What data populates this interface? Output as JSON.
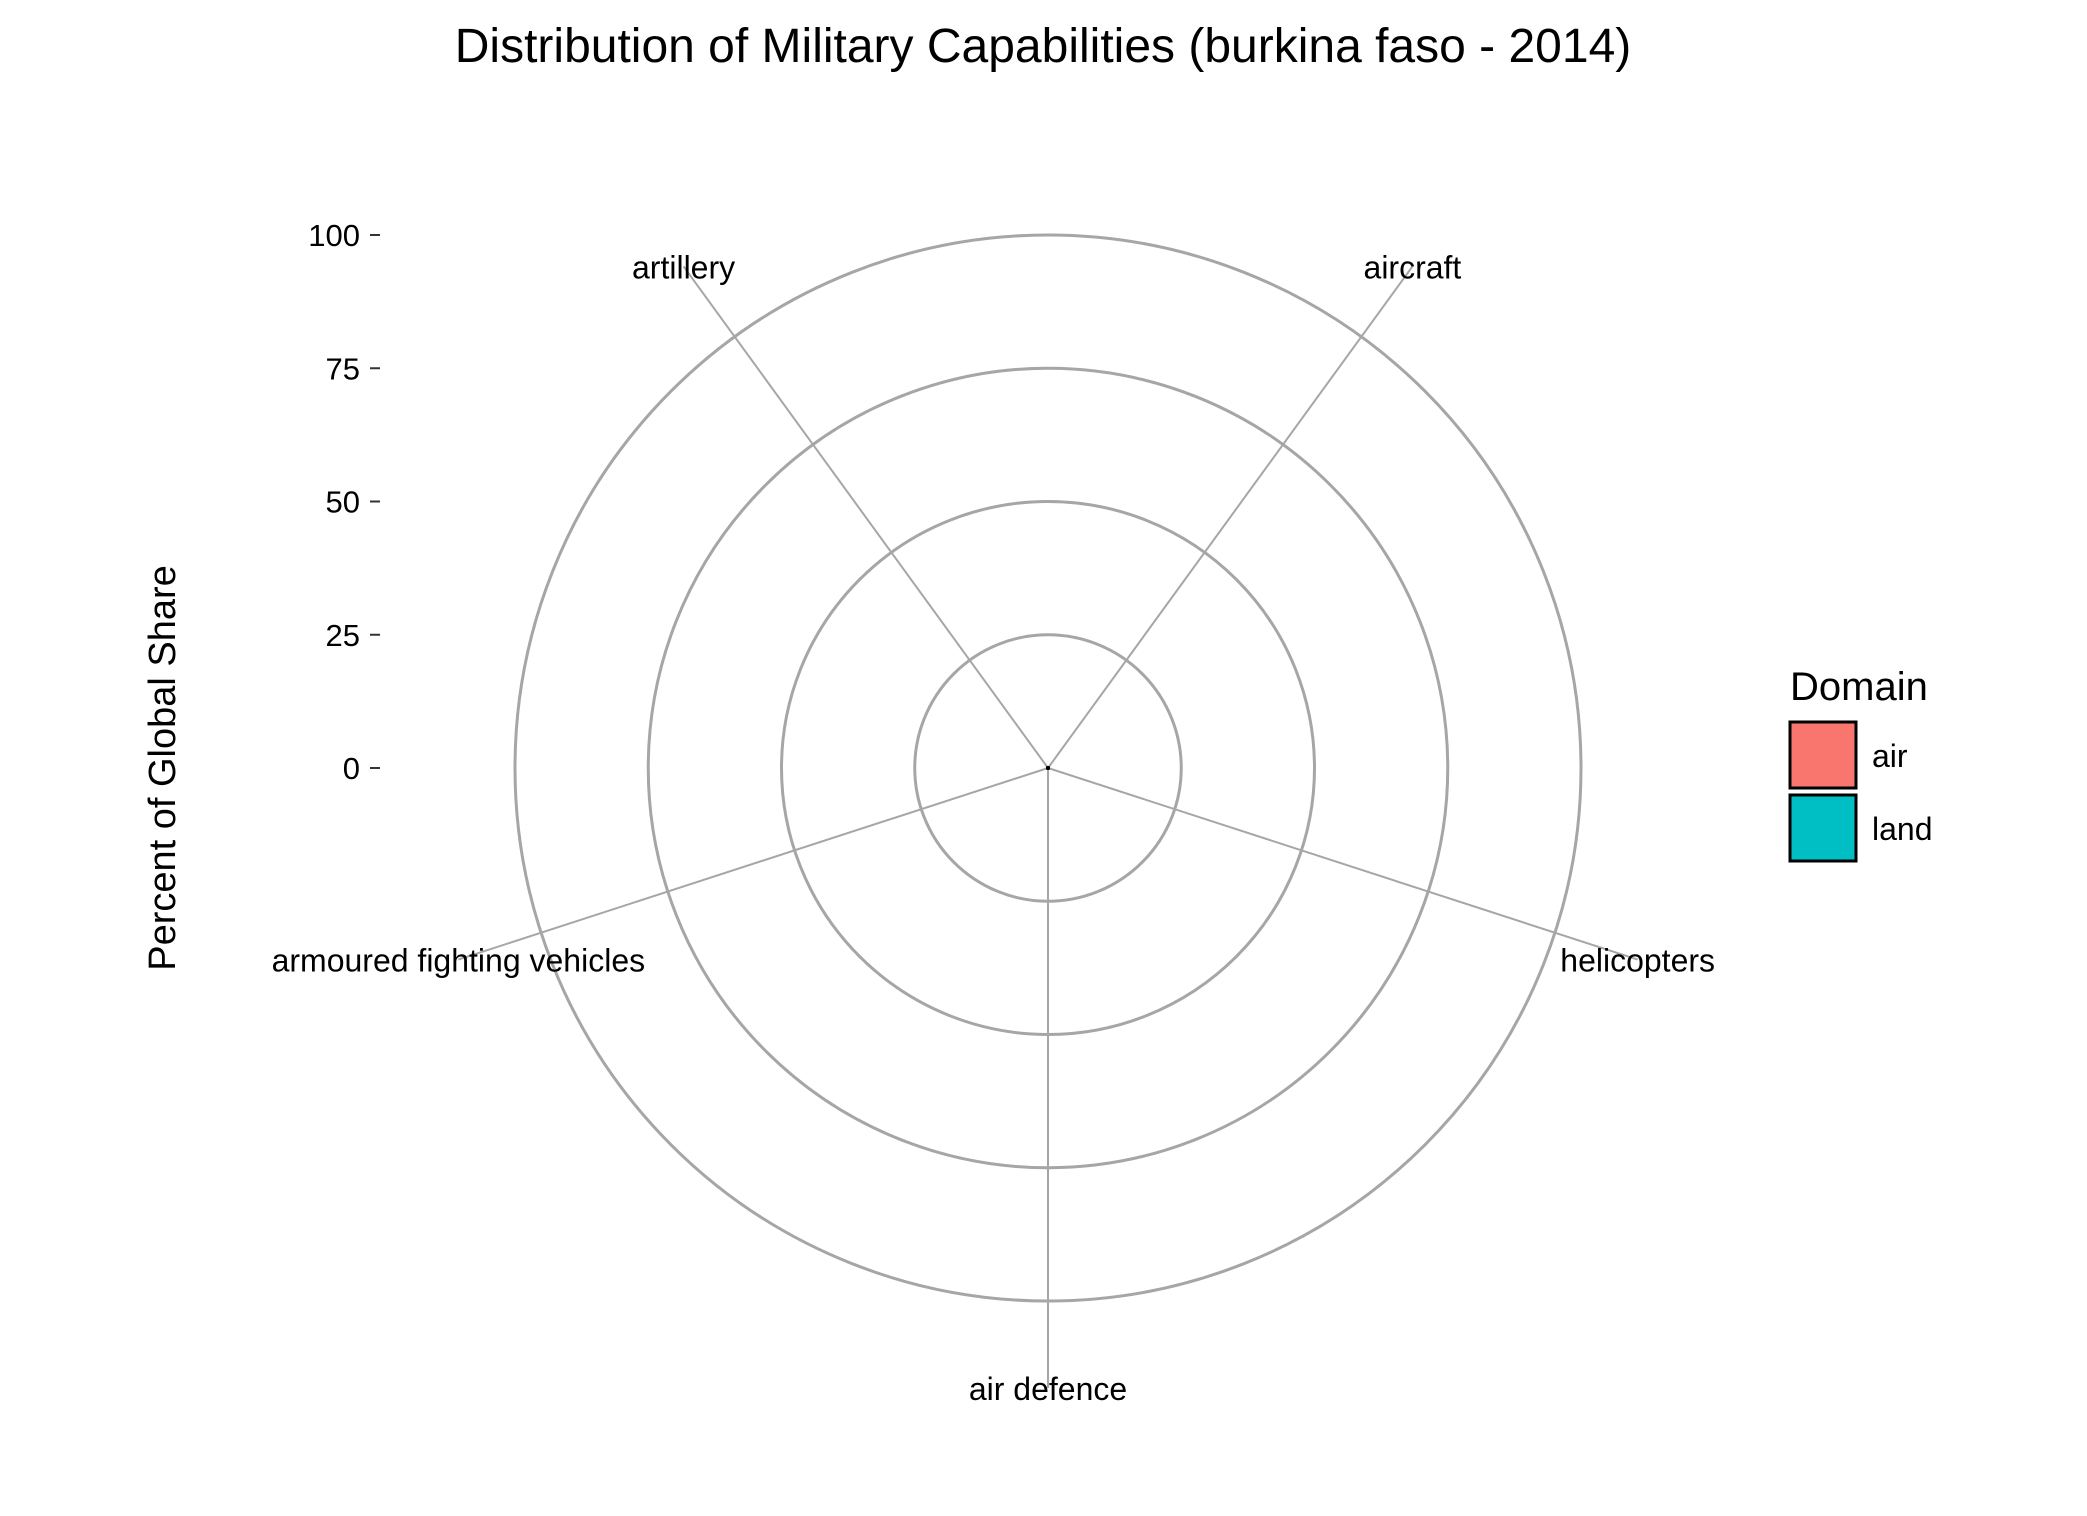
{
  "chart_data": {
    "type": "radar",
    "title": "Distribution of Military Capabilities (burkina faso - 2014)",
    "ylabel": "Percent of Global Share",
    "xlabel": "",
    "ylim": [
      0,
      100
    ],
    "y_ticks": [
      "0",
      "25",
      "50",
      "75",
      "100"
    ],
    "y_tick_values": [
      0,
      25,
      50,
      75,
      100
    ],
    "categories": [
      "aircraft",
      "helicopters",
      "air defence",
      "armoured fighting vehicles",
      "artillery"
    ],
    "series": [
      {
        "name": "air",
        "domain": "air",
        "values": [
          0,
          0,
          0,
          null,
          null
        ]
      },
      {
        "name": "land",
        "domain": "land",
        "values": [
          null,
          null,
          null,
          0,
          0
        ]
      }
    ],
    "grid": true,
    "legend": {
      "title": "Domain",
      "position": "right",
      "items": [
        {
          "label": "air",
          "color": "#F8766D"
        },
        {
          "label": "land",
          "color": "#00BFC4"
        }
      ]
    },
    "colors": {
      "grid": "#a6a6a6",
      "spoke": "#a6a6a6"
    }
  }
}
